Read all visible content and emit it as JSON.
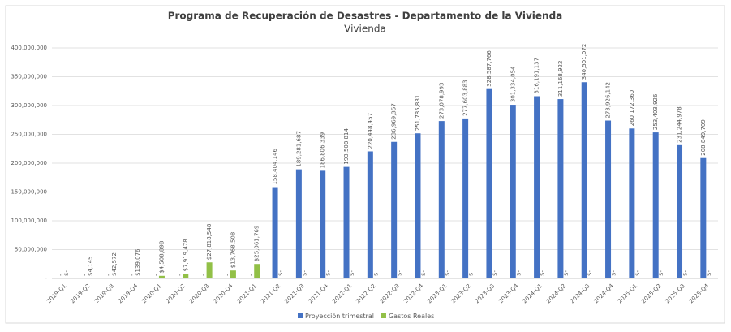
{
  "chart_data": {
    "type": "bar",
    "title": "Programa de Recuperación de Desastres - Departamento de la Vivienda",
    "subtitle": "Vivienda",
    "categories": [
      "2019-Q1",
      "2019-Q2",
      "2019-Q3",
      "2019-Q4",
      "2020-Q1",
      "2020-Q2",
      "2020-Q3",
      "2020-Q4",
      "2021-Q1",
      "2021-Q2",
      "2021-Q3",
      "2021-Q4",
      "2022-Q1",
      "2022-Q2",
      "2022-Q3",
      "2022-Q4",
      "2023-Q1",
      "2023-Q2",
      "2023-Q3",
      "2023-Q4",
      "2024-Q1",
      "2024-Q2",
      "2024-Q3",
      "2024-Q4",
      "2025-Q1",
      "2025-Q2",
      "2025-Q3",
      "2025-Q4"
    ],
    "series": [
      {
        "name": "Proyección trimestral",
        "color": "#4472c4",
        "values": [
          0,
          0,
          0,
          0,
          0,
          0,
          0,
          0,
          0,
          158404146,
          189281687,
          186806339,
          193508814,
          220448457,
          236969357,
          251785881,
          273078993,
          277603883,
          328587766,
          301334054,
          316191137,
          311168922,
          340501072,
          273926142,
          260172360,
          253403926,
          231244978,
          208849709
        ],
        "value_labels": [
          "-",
          "-",
          "-",
          "-",
          "-",
          "-",
          "-",
          "-",
          "-",
          "158,404,146",
          "189,281,687",
          "186,806,339",
          "193,508,814",
          "220,448,457",
          "236,969,357",
          "251,785,881",
          "273,078,993",
          "277,603,883",
          "328,587,766",
          "301,334,054",
          "316,191,137",
          "311,168,922",
          "340,501,072",
          "273,926,142",
          "260,172,360",
          "253,403,926",
          "231,244,978",
          "208,849,709"
        ]
      },
      {
        "name": "Gastos Reales",
        "color": "#92c047",
        "values": [
          0,
          4145,
          42572,
          139076,
          4508898,
          7919478,
          27818548,
          13768508,
          25061769,
          0,
          0,
          0,
          0,
          0,
          0,
          0,
          0,
          0,
          0,
          0,
          0,
          0,
          0,
          0,
          0,
          0,
          0,
          0
        ],
        "value_labels": [
          "$-",
          "$4,145",
          "$42,572",
          "$139,076",
          "$4,508,898",
          "$7,919,478",
          "$27,818,548",
          "$13,768,508",
          "$25,061,769",
          "$-",
          "$-",
          "$-",
          "$-",
          "$-",
          "$-",
          "$-",
          "$-",
          "$-",
          "$-",
          "$-",
          "$-",
          "$-",
          "$-",
          "$-",
          "$-",
          "$-",
          "$-",
          "$-"
        ]
      }
    ],
    "ylim": [
      0,
      400000000
    ],
    "yticks": [
      {
        "value": 0,
        "label": "-"
      },
      {
        "value": 50000000,
        "label": "50,000,000"
      },
      {
        "value": 100000000,
        "label": "100,000,000"
      },
      {
        "value": 150000000,
        "label": "150,000,000"
      },
      {
        "value": 200000000,
        "label": "200,000,000"
      },
      {
        "value": 250000000,
        "label": "250,000,000"
      },
      {
        "value": 300000000,
        "label": "300,000,000"
      },
      {
        "value": 350000000,
        "label": "350,000,000"
      },
      {
        "value": 400000000,
        "label": "400,000,000"
      }
    ],
    "grid": true,
    "legend": "bottom"
  }
}
